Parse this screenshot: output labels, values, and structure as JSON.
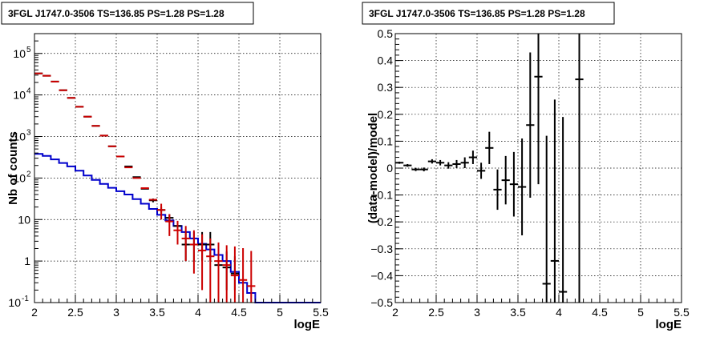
{
  "chart_data": [
    {
      "type": "step-histogram-with-errorbars",
      "title": "3FGL J1747.0-3506 TS=136.85 PS=1.28 PS=1.28",
      "xlabel": "logE",
      "ylabel": "Nb of counts",
      "xlim": [
        2,
        5.5
      ],
      "ylim": [
        0.1,
        300000
      ],
      "yscale": "log",
      "grid": true,
      "x_ticks": [
        "2",
        "2.5",
        "3",
        "3.5",
        "4",
        "4.5",
        "5",
        "5.5"
      ],
      "y_ticks": [
        {
          "v": 0.1,
          "label": "10",
          "sup": "-1"
        },
        {
          "v": 1,
          "label": "1",
          "sup": ""
        },
        {
          "v": 10,
          "label": "10",
          "sup": ""
        },
        {
          "v": 100,
          "label": "10",
          "sup": "2"
        },
        {
          "v": 1000,
          "label": "10",
          "sup": "3"
        },
        {
          "v": 10000,
          "label": "10",
          "sup": "4"
        },
        {
          "v": 100000,
          "label": "10",
          "sup": "5"
        }
      ],
      "bin_edges": [
        2.0,
        2.1,
        2.2,
        2.3,
        2.4,
        2.5,
        2.6,
        2.7,
        2.8,
        2.9,
        3.0,
        3.1,
        3.2,
        3.3,
        3.4,
        3.5,
        3.6,
        3.7,
        3.8,
        3.9,
        4.0,
        4.1,
        4.2,
        4.3,
        4.4,
        4.5,
        4.6,
        4.7,
        4.8,
        4.9,
        5.0,
        5.1,
        5.2,
        5.3,
        5.4,
        5.5
      ],
      "series": [
        {
          "role": "component-model",
          "color": "#0000cc",
          "values": [
            380,
            340,
            280,
            230,
            190,
            150,
            115,
            90,
            72,
            58,
            48,
            40,
            31,
            24,
            18,
            13,
            9.5,
            7,
            5,
            3.5,
            2.6,
            1.9,
            1.4,
            1.0,
            0.55,
            0.3,
            0.17,
            0.1,
            0.1,
            0.1,
            0.1,
            0.1,
            0.1,
            0.1,
            0.1
          ]
        },
        {
          "role": "total-model",
          "color": "#cc0000",
          "x": [
            2.05,
            2.15,
            2.25,
            2.35,
            2.45,
            2.55,
            2.65,
            2.75,
            2.85,
            2.95,
            3.05,
            3.15,
            3.25,
            3.35,
            3.45,
            3.55,
            3.65,
            3.75,
            3.85,
            3.95,
            4.05,
            4.15,
            4.25,
            4.35,
            4.45,
            4.55,
            4.65
          ],
          "y": [
            33000,
            29000,
            21000,
            13000,
            8500,
            5200,
            3000,
            1800,
            1050,
            580,
            330,
            180,
            100,
            57,
            30,
            17,
            9,
            5.5,
            3.5,
            2.5,
            1.8,
            1.3,
            1.0,
            0.8,
            0.45,
            0.35,
            0.25
          ],
          "err_lo": [
            0,
            0,
            0,
            0,
            0,
            0,
            0,
            0,
            0,
            0,
            0,
            0,
            0,
            0,
            0,
            7,
            5,
            3,
            2.5,
            2.0,
            1.6,
            1.2,
            0.9,
            0.7,
            0.35,
            0.25,
            0.15
          ],
          "err_hi": [
            0,
            0,
            0,
            0,
            0,
            0,
            0,
            0,
            0,
            0,
            0,
            0,
            0,
            0,
            0,
            7,
            4.5,
            3.8,
            3.5,
            3.0,
            2.6,
            2.2,
            1.8,
            1.6,
            1.8,
            1.7,
            1.5
          ]
        },
        {
          "role": "data",
          "color": "#000000",
          "x": [
            2.05,
            2.15,
            2.25,
            2.35,
            2.45,
            2.55,
            2.65,
            2.75,
            2.85,
            2.95,
            3.05,
            3.15,
            3.25,
            3.35,
            3.45,
            3.55,
            3.65,
            3.75,
            3.85,
            3.95,
            4.05,
            4.15,
            4.25,
            4.35,
            4.45
          ],
          "y": [
            33000,
            29000,
            21000,
            13000,
            8500,
            5200,
            3000,
            1800,
            1050,
            580,
            330,
            190,
            105,
            55,
            29,
            17,
            11,
            7,
            2.5,
            2.5,
            2.5,
            2.5,
            0.8,
            0.7,
            0.5
          ],
          "err_lo": [
            0,
            0,
            0,
            0,
            0,
            0,
            0,
            0,
            0,
            0,
            0,
            0,
            0,
            0,
            3,
            3,
            2.5,
            2,
            1.5,
            1.5,
            1.5,
            1.5,
            0.5,
            0.5,
            0.3
          ],
          "err_hi": [
            0,
            0,
            0,
            0,
            0,
            0,
            0,
            0,
            0,
            0,
            0,
            0,
            0,
            0,
            3,
            3,
            2.5,
            2,
            2.5,
            2.5,
            2.5,
            2.5,
            1.5,
            1.0,
            0.8
          ]
        }
      ]
    },
    {
      "type": "scatter-with-errorbars",
      "title": "3FGL J1747.0-3506 TS=136.85 PS=1.28 PS=1.28",
      "xlabel": "logE",
      "ylabel": "(data-model)/model",
      "xlim": [
        2,
        5.5
      ],
      "ylim": [
        -0.5,
        0.5
      ],
      "grid": true,
      "x_ticks": [
        "2",
        "2.5",
        "3",
        "3.5",
        "4",
        "4.5",
        "5",
        "5.5"
      ],
      "y_ticks": [
        "−0.5",
        "−0.4",
        "−0.3",
        "−0.2",
        "−0.1",
        "0",
        "0.1",
        "0.2",
        "0.3",
        "0.4",
        "0.5"
      ],
      "series": [
        {
          "role": "residuals",
          "color": "#000000",
          "x": [
            2.05,
            2.15,
            2.25,
            2.35,
            2.45,
            2.55,
            2.65,
            2.75,
            2.85,
            2.95,
            3.05,
            3.15,
            3.25,
            3.35,
            3.45,
            3.55,
            3.65,
            3.75,
            3.85,
            3.95,
            4.05,
            4.25
          ],
          "y": [
            0.02,
            0.01,
            -0.005,
            -0.005,
            0.025,
            0.02,
            0.01,
            0.015,
            0.02,
            0.04,
            -0.01,
            0.075,
            -0.08,
            -0.045,
            -0.06,
            -0.07,
            0.16,
            0.34,
            -0.43,
            -0.345,
            -0.46,
            0.33
          ],
          "err": [
            0.004,
            0.005,
            0.006,
            0.007,
            0.008,
            0.01,
            0.012,
            0.015,
            0.02,
            0.025,
            0.03,
            0.06,
            0.075,
            0.09,
            0.12,
            0.18,
            0.27,
            0.4,
            0.55,
            0.6,
            0.65,
            0.9
          ]
        }
      ]
    }
  ]
}
